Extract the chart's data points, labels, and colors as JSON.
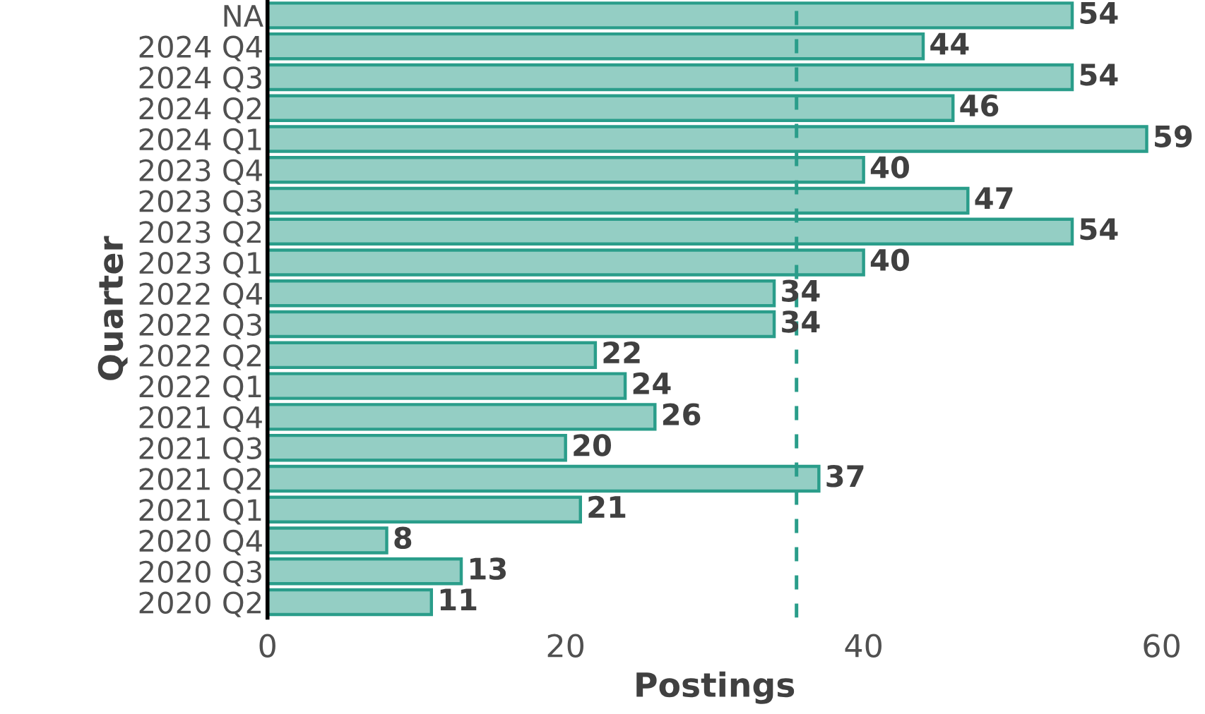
{
  "chart_data": {
    "type": "bar",
    "orientation": "horizontal",
    "xlabel": "Postings",
    "ylabel": "Quarter",
    "categories": [
      "NA",
      "2024 Q4",
      "2024 Q3",
      "2024 Q2",
      "2024 Q1",
      "2023 Q4",
      "2023 Q3",
      "2023 Q2",
      "2023 Q1",
      "2022 Q4",
      "2022 Q3",
      "2022 Q2",
      "2022 Q1",
      "2021 Q4",
      "2021 Q3",
      "2021 Q2",
      "2021 Q1",
      "2020 Q4",
      "2020 Q3",
      "2020 Q2"
    ],
    "values": [
      54,
      44,
      54,
      46,
      59,
      40,
      47,
      54,
      40,
      34,
      34,
      22,
      24,
      26,
      20,
      37,
      21,
      8,
      13,
      11
    ],
    "color": "#2a9d8a",
    "data_labels": true,
    "xlim": [
      0,
      60
    ],
    "xticks": [
      0,
      20,
      40,
      60
    ],
    "grid": false,
    "legend": false,
    "ref_lines": [
      {
        "axis": "x",
        "value": 35.5,
        "color": "#2a9d8a",
        "line_style": "dashed"
      }
    ]
  }
}
